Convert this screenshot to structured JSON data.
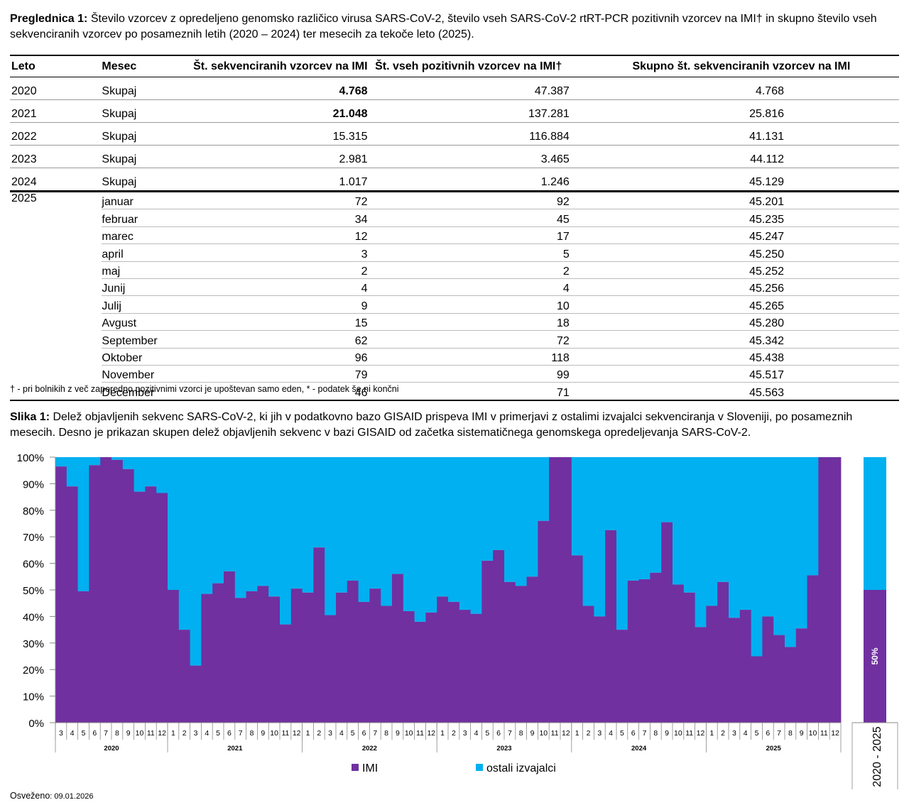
{
  "table_caption": {
    "label": "Preglednica 1:",
    "text": " Število vzorcev z opredeljeno genomsko različico virusa SARS-CoV-2, število vseh SARS-CoV-2 rtRT-PCR pozitivnih vzorcev na IMI† in skupno število vseh sekvenciranih vzorcev po posameznih letih (2020 – 2024) ter mesecih za tekoče leto (2025)."
  },
  "table": {
    "headers": [
      "Leto",
      "Mesec",
      "Št. sekvenciranih vzorcev na IMI",
      "Št. vseh pozitivnih vzorcev na IMI†",
      "Skupno št. sekvenciranih vzorcev na IMI"
    ],
    "year_rows": [
      {
        "leto": "2020",
        "mesec": "Skupaj",
        "seq": "4.768",
        "pos": "47.387",
        "tot": "4.768",
        "bold": true
      },
      {
        "leto": "2021",
        "mesec": "Skupaj",
        "seq": "21.048",
        "pos": "137.281",
        "tot": "25.816",
        "bold": true
      },
      {
        "leto": "2022",
        "mesec": "Skupaj",
        "seq": "15.315",
        "pos": "116.884",
        "tot": "41.131",
        "bold": false
      },
      {
        "leto": "2023",
        "mesec": "Skupaj",
        "seq": "2.981",
        "pos": "3.465",
        "tot": "44.112",
        "bold": false
      },
      {
        "leto": "2024",
        "mesec": "Skupaj",
        "seq": "1.017",
        "pos": "1.246",
        "tot": "45.129",
        "bold": false
      }
    ],
    "month_year": "2025",
    "month_rows": [
      {
        "mesec": "januar",
        "seq": "72",
        "pos": "92",
        "tot": "45.201"
      },
      {
        "mesec": "februar",
        "seq": "34",
        "pos": "45",
        "tot": "45.235"
      },
      {
        "mesec": "marec",
        "seq": "12",
        "pos": "17",
        "tot": "45.247"
      },
      {
        "mesec": "april",
        "seq": "3",
        "pos": "5",
        "tot": "45.250"
      },
      {
        "mesec": "maj",
        "seq": "2",
        "pos": "2",
        "tot": "45.252"
      },
      {
        "mesec": "Junij",
        "seq": "4",
        "pos": "4",
        "tot": "45.256"
      },
      {
        "mesec": "Julij",
        "seq": "9",
        "pos": "10",
        "tot": "45.265"
      },
      {
        "mesec": "Avgust",
        "seq": "15",
        "pos": "18",
        "tot": "45.280"
      },
      {
        "mesec": "September",
        "seq": "62",
        "pos": "72",
        "tot": "45.342"
      },
      {
        "mesec": "Oktober",
        "seq": "96",
        "pos": "118",
        "tot": "45.438"
      },
      {
        "mesec": "November",
        "seq": "79",
        "pos": "99",
        "tot": "45.517"
      },
      {
        "mesec": "December",
        "seq": "46",
        "pos": "71",
        "tot": "45.563"
      }
    ]
  },
  "footnote": "† - pri bolnikih z več zaporedno pozitivnimi vzorci je upoštevan samo eden, * - podatek še ni končni",
  "figure_caption": {
    "label": "Slika 1:",
    "text": " Delež objavljenih sekvenc SARS-CoV-2, ki jih v podatkovno bazo GISAID prispeva IMI v primerjavi z ostalimi izvajalci sekvenciranja v Sloveniji,  po posameznih mesecih. Desno je prikazan skupen delež objavljenih sekvenc v bazi GISAID od začetka sistematičnega genomskega opredeljevanja SARS-CoV-2."
  },
  "colors": {
    "imi": "#7030a0",
    "others": "#00b0f0"
  },
  "chart_data": {
    "type": "bar",
    "stacked": true,
    "title": "",
    "ylabel": "",
    "ylim": [
      0,
      100
    ],
    "y_ticks": [
      "0%",
      "10%",
      "20%",
      "30%",
      "40%",
      "50%",
      "60%",
      "70%",
      "80%",
      "90%",
      "100%"
    ],
    "year_labels": [
      "2020",
      "2021",
      "2022",
      "2023",
      "2024",
      "2025"
    ],
    "month_labels": [
      [
        "3",
        "4",
        "5",
        "6",
        "7",
        "8",
        "9",
        "10",
        "11",
        "12"
      ],
      [
        "1",
        "2",
        "3",
        "4",
        "5",
        "6",
        "7",
        "8",
        "9",
        "10",
        "11",
        "12"
      ],
      [
        "1",
        "2",
        "3",
        "4",
        "5",
        "6",
        "7",
        "8",
        "9",
        "10",
        "11",
        "12"
      ],
      [
        "1",
        "2",
        "3",
        "4",
        "5",
        "6",
        "7",
        "8",
        "9",
        "10",
        "11",
        "12"
      ],
      [
        "1",
        "2",
        "3",
        "4",
        "5",
        "6",
        "7",
        "8",
        "9",
        "10",
        "11",
        "12"
      ],
      [
        "1",
        "2",
        "3",
        "4",
        "5",
        "6",
        "7",
        "8",
        "9",
        "10",
        "11",
        "12"
      ]
    ],
    "series": [
      {
        "name": "IMI",
        "values": [
          96.5,
          89,
          49.5,
          97,
          100,
          99,
          95.5,
          87,
          89,
          86.5,
          50,
          35,
          21.5,
          48.5,
          52.5,
          57,
          47,
          49.5,
          51.5,
          47.5,
          37,
          50.5,
          49,
          66,
          40.5,
          49,
          53.5,
          45.5,
          50.5,
          44,
          56,
          42,
          38,
          41.5,
          47.5,
          45.5,
          42.5,
          41,
          61,
          65,
          53,
          51.5,
          55,
          76,
          100,
          100,
          63,
          44,
          40,
          72.5,
          35,
          53.5,
          54,
          56.5,
          75.5,
          52,
          49,
          36,
          44,
          53,
          39.5,
          42.5,
          25,
          40,
          33,
          28.5,
          35.5,
          55.5,
          100,
          100
        ]
      },
      {
        "name": "ostali izvajalci",
        "values": "complement to 100%"
      }
    ],
    "summary_bar": {
      "label": "2020 - 2025",
      "imi": 50,
      "value_label": "50%"
    },
    "legend": [
      "IMI",
      "ostali izvajalci"
    ],
    "legend_position": "bottom"
  },
  "refreshed": {
    "label": "Osveženo",
    "date": ": 09.01.2026"
  }
}
